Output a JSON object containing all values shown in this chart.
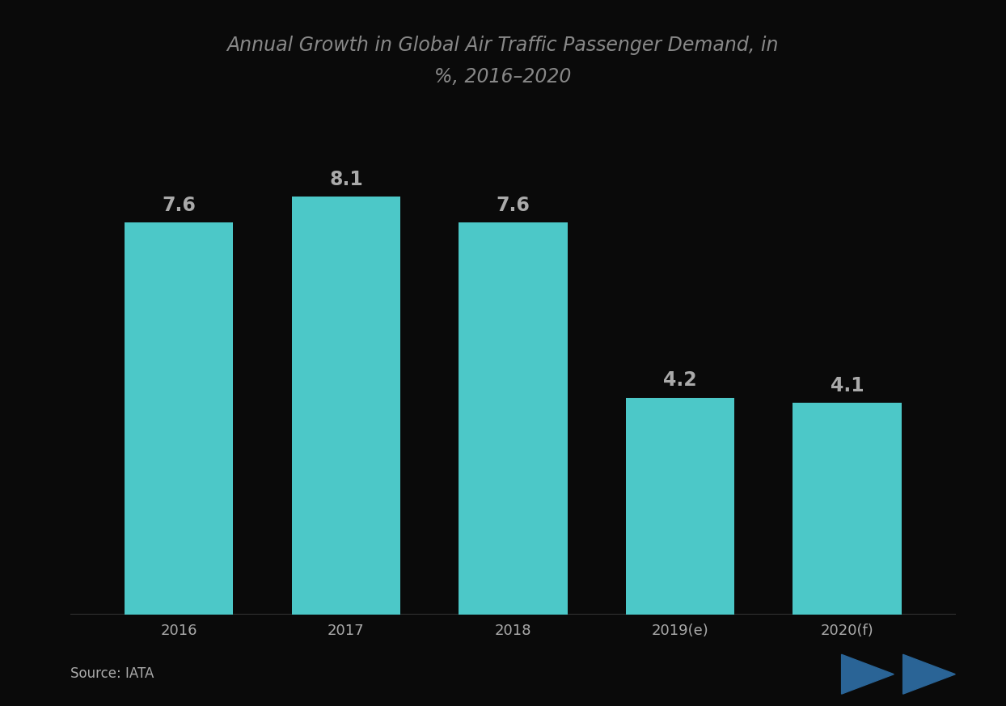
{
  "categories": [
    "2016",
    "2017",
    "2018",
    "2019(e)",
    "2020(f)"
  ],
  "values": [
    7.6,
    8.1,
    7.6,
    4.2,
    4.1
  ],
  "bar_color": "#4CC8C8",
  "title_line1": "Annual Growth in Global Air Traffic Passenger Demand, in",
  "title_line2": "%, 2016–2020",
  "source_text": "Source: IATA",
  "background_color": "#0a0a0a",
  "text_color": "#aaaaaa",
  "title_color": "#888888",
  "value_label_color": "#aaaaaa",
  "ylim": [
    0,
    10
  ],
  "bar_width": 0.65,
  "title_fontsize": 17,
  "label_fontsize": 17,
  "tick_fontsize": 13,
  "source_fontsize": 12
}
